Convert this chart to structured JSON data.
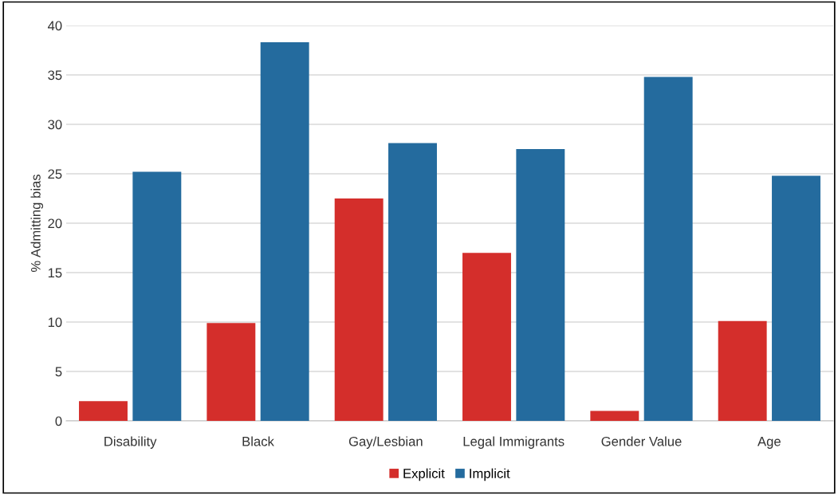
{
  "chart_data": {
    "type": "bar",
    "ylabel": "% Admitting bias",
    "categories": [
      "Disability",
      "Black",
      "Gay/Lesbian",
      "Legal Immigrants",
      "Gender Value",
      "Age"
    ],
    "series": [
      {
        "name": "Explicit",
        "color": "#d42e2b",
        "values": [
          2.0,
          9.9,
          22.5,
          17.0,
          1.0,
          10.1
        ]
      },
      {
        "name": "Implicit",
        "color": "#246b9e",
        "values": [
          25.2,
          38.3,
          28.1,
          27.5,
          34.8,
          24.8
        ]
      }
    ],
    "ylim": [
      0,
      40
    ],
    "yticks": [
      0,
      5,
      10,
      15,
      20,
      25,
      30,
      35,
      40
    ],
    "grid": "y",
    "legend": "bottom"
  }
}
